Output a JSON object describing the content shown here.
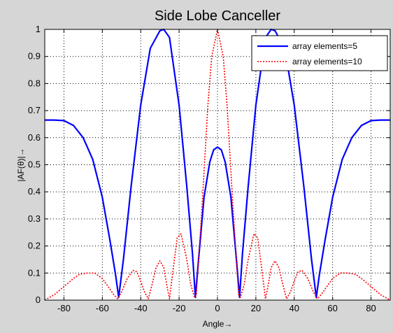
{
  "chart_data": {
    "type": "line",
    "title": "Side Lobe Canceller",
    "xlabel": "Angle→",
    "ylabel": "|AF(θ)|→",
    "xlim": [
      -90,
      90
    ],
    "ylim": [
      0,
      1
    ],
    "xticks": [
      -80,
      -60,
      -40,
      -20,
      0,
      20,
      40,
      60,
      80
    ],
    "yticks": [
      0,
      0.1,
      0.2,
      0.3,
      0.4,
      0.5,
      0.6,
      0.7,
      0.8,
      0.9,
      1
    ],
    "grid": true,
    "legend_position": "top-right",
    "series": [
      {
        "name": "array elements=5",
        "color": "#0000ff",
        "style": "solid",
        "x": [
          -90,
          -85,
          -80,
          -75,
          -70,
          -65,
          -60,
          -56,
          -53,
          -51.5,
          -49,
          -45,
          -40,
          -35,
          -30,
          -28,
          -25,
          -20,
          -16,
          -13,
          -11.5,
          -10,
          -7,
          -4,
          -2,
          0,
          2,
          4,
          7,
          10,
          11.5,
          13,
          16,
          20,
          25,
          28,
          30,
          35,
          40,
          45,
          49,
          51.5,
          53,
          56,
          60,
          65,
          70,
          75,
          80,
          85,
          90
        ],
        "y": [
          0.665,
          0.665,
          0.663,
          0.645,
          0.6,
          0.52,
          0.38,
          0.22,
          0.09,
          0.01,
          0.15,
          0.42,
          0.72,
          0.93,
          0.995,
          1.0,
          0.97,
          0.72,
          0.42,
          0.17,
          0.01,
          0.14,
          0.38,
          0.51,
          0.555,
          0.565,
          0.555,
          0.51,
          0.38,
          0.14,
          0.01,
          0.17,
          0.42,
          0.72,
          0.97,
          1.0,
          0.995,
          0.93,
          0.72,
          0.42,
          0.15,
          0.01,
          0.09,
          0.22,
          0.38,
          0.52,
          0.6,
          0.645,
          0.663,
          0.665,
          0.665
        ]
      },
      {
        "name": "array elements=10",
        "color": "#ff0000",
        "style": "dotted",
        "x": [
          -90,
          -85,
          -80,
          -75,
          -72,
          -68,
          -64,
          -60,
          -57,
          -54,
          -52,
          -50,
          -47,
          -44,
          -42,
          -40,
          -38,
          -36,
          -34,
          -32,
          -30,
          -28,
          -26,
          -25,
          -23,
          -21,
          -19,
          -16,
          -14,
          -12,
          -11,
          -8,
          -5,
          -3,
          0,
          3,
          5,
          8,
          11,
          12,
          14,
          16,
          19,
          21,
          23,
          25,
          26,
          28,
          30,
          32,
          34,
          36,
          38,
          40,
          42,
          44,
          47,
          50,
          52,
          54,
          57,
          60,
          64,
          68,
          72,
          75,
          80,
          85,
          90
        ],
        "y": [
          0.0,
          0.02,
          0.05,
          0.08,
          0.095,
          0.1,
          0.1,
          0.08,
          0.05,
          0.02,
          0.005,
          0.03,
          0.08,
          0.11,
          0.105,
          0.07,
          0.03,
          0.005,
          0.06,
          0.12,
          0.145,
          0.12,
          0.04,
          0.005,
          0.12,
          0.23,
          0.245,
          0.15,
          0.06,
          0.01,
          0.02,
          0.35,
          0.72,
          0.9,
          1.0,
          0.9,
          0.72,
          0.35,
          0.02,
          0.01,
          0.06,
          0.15,
          0.245,
          0.23,
          0.12,
          0.005,
          0.04,
          0.12,
          0.145,
          0.12,
          0.06,
          0.005,
          0.03,
          0.07,
          0.105,
          0.11,
          0.08,
          0.03,
          0.005,
          0.02,
          0.05,
          0.08,
          0.1,
          0.1,
          0.095,
          0.08,
          0.05,
          0.02,
          0.0
        ]
      }
    ]
  }
}
